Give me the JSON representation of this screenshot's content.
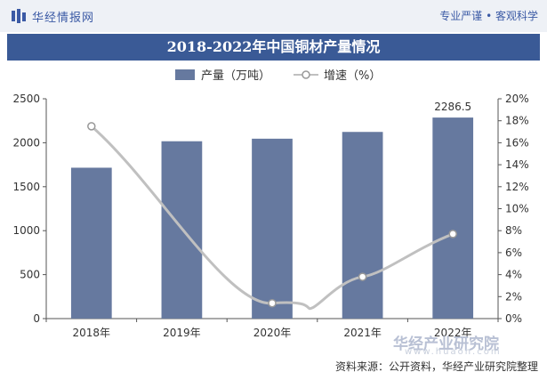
{
  "header": {
    "brand": "华经情报网",
    "slogan": "专业严谨 • 客观科学"
  },
  "watermark": {
    "text": "华经产业研究院",
    "url": "www.huaon.com"
  },
  "footer": {
    "source": "资料来源：公开资料，华经产业研究院整理"
  },
  "colors": {
    "bar": "#66799f",
    "line": "#c0c0c0",
    "title_bg": "#3a5a96",
    "brand": "#3b5aa5"
  },
  "chart_data": {
    "type": "bar",
    "title": "2018-2022年中国铜材产量情况",
    "categories": [
      "2018年",
      "2019年",
      "2020年",
      "2021年",
      "2022年"
    ],
    "series": [
      {
        "name": "产量（万吨）",
        "type": "bar",
        "axis": "left",
        "values": [
          1716,
          2017,
          2046,
          2123,
          2286.5
        ]
      },
      {
        "name": "增速（%）",
        "type": "line",
        "axis": "right",
        "smooth": true,
        "values": [
          17.5,
          null,
          1.4,
          3.8,
          7.7
        ]
      }
    ],
    "data_labels": [
      {
        "category": "2022年",
        "text": "2286.5"
      }
    ],
    "yleft": {
      "min": 0,
      "max": 2500,
      "ticks": [
        "0",
        "500",
        "1000",
        "1500",
        "2000",
        "2500"
      ]
    },
    "yright": {
      "min": 0,
      "max": 20,
      "ticks": [
        "0%",
        "2%",
        "4%",
        "6%",
        "8%",
        "10%",
        "12%",
        "14%",
        "16%",
        "18%",
        "20%"
      ]
    },
    "legend": "top-center",
    "grid": false
  }
}
